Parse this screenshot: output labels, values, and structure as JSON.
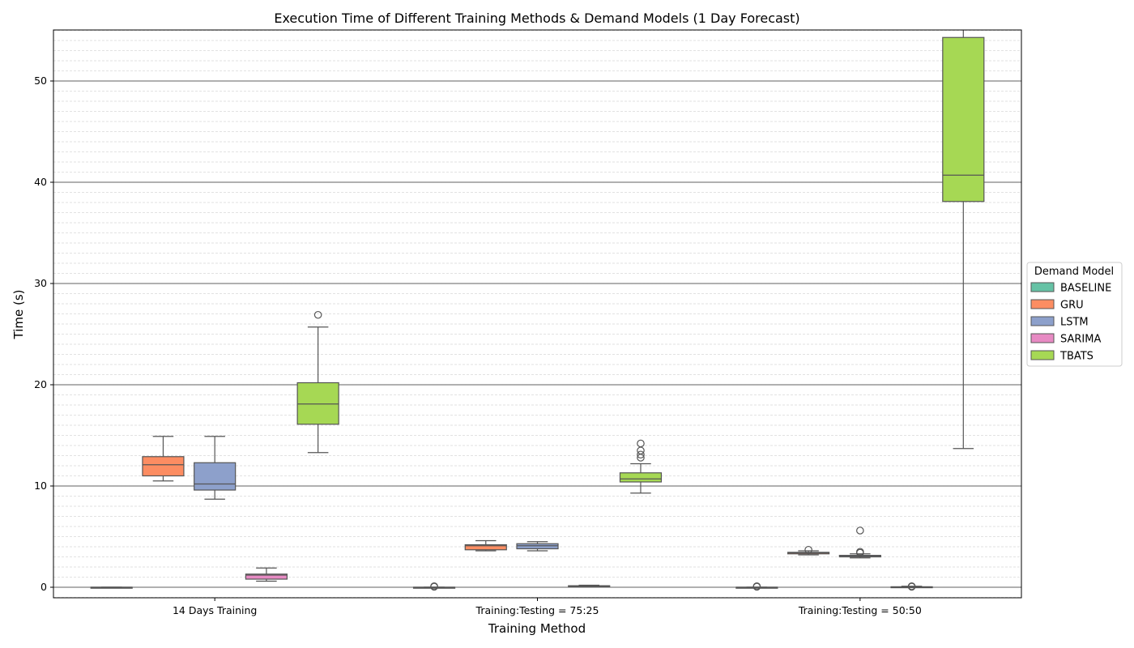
{
  "chart_data": {
    "type": "box",
    "title": "Execution Time of Different Training Methods & Demand Models (1 Day Forecast)",
    "xlabel": "Training Method",
    "ylabel": "Time (s)",
    "ylim": [
      -1,
      55
    ],
    "yticks": [
      0,
      10,
      20,
      30,
      40,
      50
    ],
    "grid": "major solid, minor dashed (y)",
    "categories": [
      "14 Days Training",
      "Training:Testing = 75:25",
      "Training:Testing = 50:50"
    ],
    "legend": {
      "title": "Demand Model",
      "placement": "center-right outside"
    },
    "series": [
      {
        "name": "BASELINE",
        "color": "#66c2a5",
        "boxes": [
          {
            "min": 0.0,
            "q1": 0.0,
            "median": 0.0,
            "q3": 0.0,
            "max": 0.0,
            "outliers": []
          },
          {
            "min": 0.0,
            "q1": 0.0,
            "median": 0.0,
            "q3": 0.0,
            "max": 0.0,
            "outliers": [
              0.05,
              0.1
            ]
          },
          {
            "min": 0.0,
            "q1": 0.0,
            "median": 0.0,
            "q3": 0.0,
            "max": 0.0,
            "outliers": [
              0.05,
              0.1
            ]
          }
        ]
      },
      {
        "name": "GRU",
        "color": "#fc8d62",
        "boxes": [
          {
            "min": 10.5,
            "q1": 11.0,
            "median": 12.1,
            "q3": 12.9,
            "max": 14.9,
            "outliers": []
          },
          {
            "min": 3.6,
            "q1": 3.7,
            "median": 4.1,
            "q3": 4.2,
            "max": 4.6,
            "outliers": []
          },
          {
            "min": 3.2,
            "q1": 3.3,
            "median": 3.4,
            "q3": 3.45,
            "max": 3.6,
            "outliers": [
              3.7
            ]
          }
        ]
      },
      {
        "name": "LSTM",
        "color": "#8da0cb",
        "boxes": [
          {
            "min": 8.7,
            "q1": 9.6,
            "median": 10.2,
            "q3": 12.3,
            "max": 14.9,
            "outliers": []
          },
          {
            "min": 3.6,
            "q1": 3.8,
            "median": 4.1,
            "q3": 4.3,
            "max": 4.5,
            "outliers": []
          },
          {
            "min": 2.9,
            "q1": 3.0,
            "median": 3.1,
            "q3": 3.15,
            "max": 3.3,
            "outliers": [
              3.4,
              3.5,
              5.6
            ]
          }
        ]
      },
      {
        "name": "SARIMA",
        "color": "#e78ac3",
        "boxes": [
          {
            "min": 0.6,
            "q1": 0.8,
            "median": 1.2,
            "q3": 1.3,
            "max": 1.9,
            "outliers": []
          },
          {
            "min": 0.1,
            "q1": 0.1,
            "median": 0.1,
            "q3": 0.15,
            "max": 0.2,
            "outliers": []
          },
          {
            "min": 0.0,
            "q1": 0.0,
            "median": 0.0,
            "q3": 0.05,
            "max": 0.1,
            "outliers": [
              0.05,
              0.1
            ]
          }
        ]
      },
      {
        "name": "TBATS",
        "color": "#a6d854",
        "boxes": [
          {
            "min": 13.3,
            "q1": 16.1,
            "median": 18.1,
            "q3": 20.2,
            "max": 25.7,
            "outliers": [
              26.9
            ]
          },
          {
            "min": 9.3,
            "q1": 10.4,
            "median": 10.7,
            "q3": 11.3,
            "max": 12.2,
            "outliers": [
              12.8,
              13.1,
              13.5,
              14.2
            ]
          },
          {
            "min": 13.7,
            "q1": 38.1,
            "median": 40.7,
            "q3": 54.3,
            "max": 58.0,
            "outliers": []
          }
        ]
      }
    ]
  }
}
